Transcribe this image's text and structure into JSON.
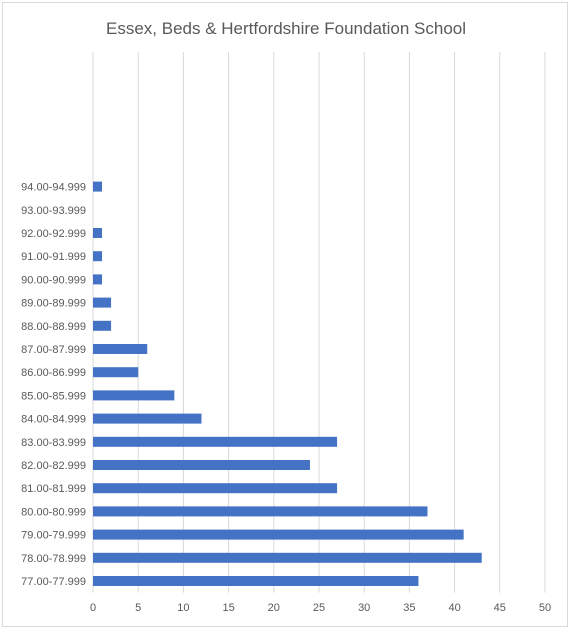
{
  "chart_data": {
    "type": "bar",
    "orientation": "horizontal",
    "title": "Essex, Beds & Hertfordshire Foundation School",
    "categories": [
      "77.00-77.999",
      "78.00-78.999",
      "79.00-79.999",
      "80.00-80.999",
      "81.00-81.999",
      "82.00-82.999",
      "83.00-83.999",
      "84.00-84.999",
      "85.00-85.999",
      "86.00-86.999",
      "87.00-87.999",
      "88.00-88.999",
      "89.00-89.999",
      "90.00-90.999",
      "91.00-91.999",
      "92.00-92.999",
      "93.00-93.999",
      "94.00-94.999",
      "",
      ""
    ],
    "values": [
      36,
      43,
      41,
      37,
      27,
      24,
      27,
      12,
      9,
      5,
      6,
      2,
      2,
      1,
      1,
      1,
      0,
      1,
      null,
      null
    ],
    "xlim": [
      0,
      50
    ],
    "xticks": [
      0,
      5,
      10,
      15,
      20,
      25,
      30,
      35,
      40,
      45,
      50
    ],
    "grid": true,
    "bar_color": "#4472c4"
  }
}
